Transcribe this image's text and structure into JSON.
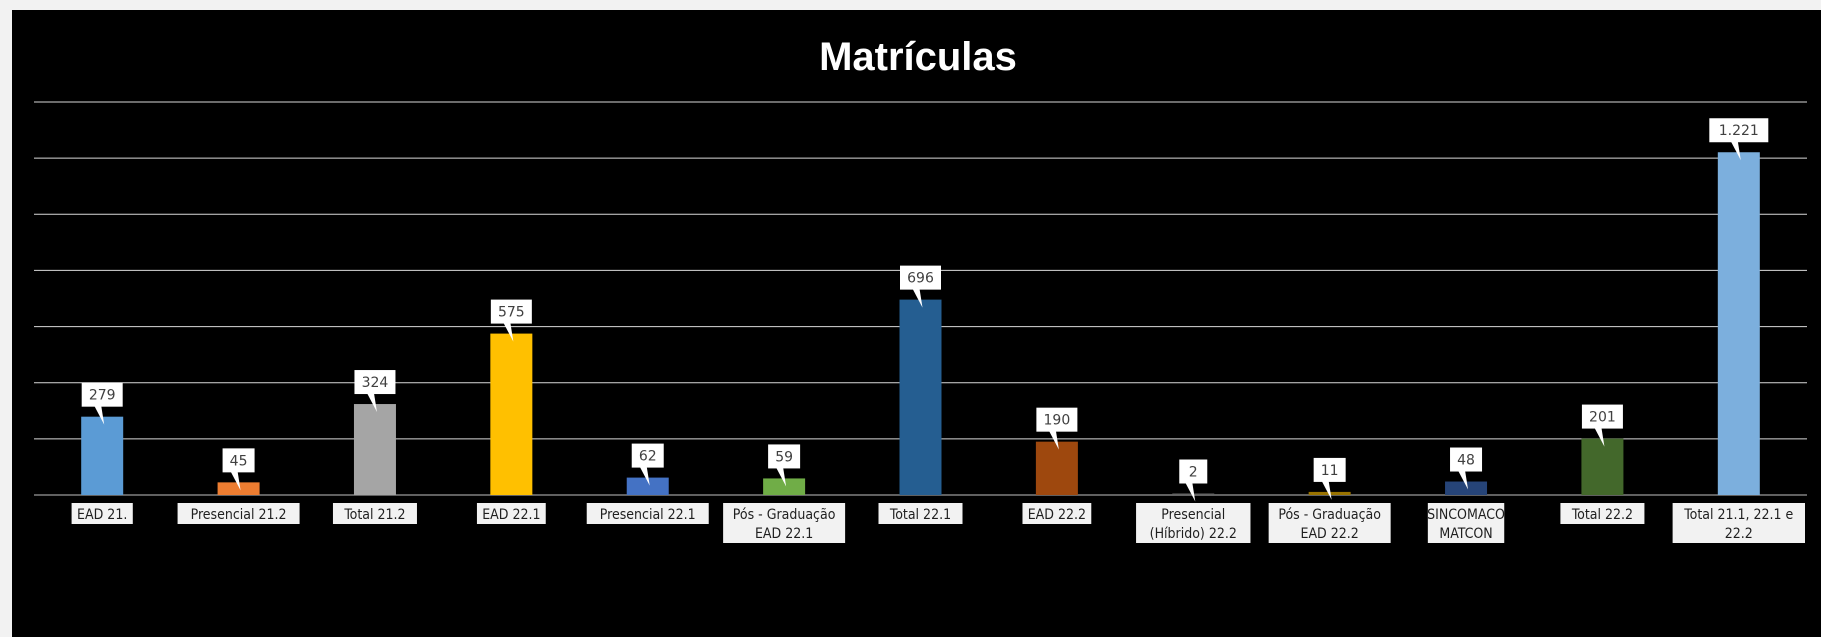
{
  "chart_data": {
    "type": "bar",
    "title": "Matrículas",
    "categories": [
      [
        "EAD 21."
      ],
      [
        "Presencial 21.2"
      ],
      [
        "Total 21.2"
      ],
      [
        "EAD 22.1"
      ],
      [
        "Presencial 22.1"
      ],
      [
        "Pós - Graduação",
        "EAD 22.1"
      ],
      [
        "Total 22.1"
      ],
      [
        "EAD 22.2"
      ],
      [
        "Presencial",
        "(Híbrido) 22.2"
      ],
      [
        "Pós - Graduação",
        "EAD 22.2"
      ],
      [
        "SINCOMACO",
        "MATCON"
      ],
      [
        "Total 22.2"
      ],
      [
        "Total 21.1, 22.1 e",
        "22.2"
      ]
    ],
    "values": [
      279,
      45,
      324,
      575,
      62,
      59,
      696,
      190,
      2,
      11,
      48,
      201,
      1221
    ],
    "data_labels": [
      "279",
      "45",
      "324",
      "575",
      "62",
      "59",
      "696",
      "190",
      "2",
      "11",
      "48",
      "201",
      "1.221"
    ],
    "colors": [
      "#5b9bd5",
      "#ed7d31",
      "#a5a5a5",
      "#ffc000",
      "#4472c4",
      "#70ad47",
      "#255e91",
      "#9e480e",
      "#636363",
      "#997300",
      "#264478",
      "#43682b",
      "#7cafdd"
    ],
    "ylim": [
      0,
      1400
    ],
    "grid": true,
    "legend": "none",
    "background": "#000000"
  }
}
